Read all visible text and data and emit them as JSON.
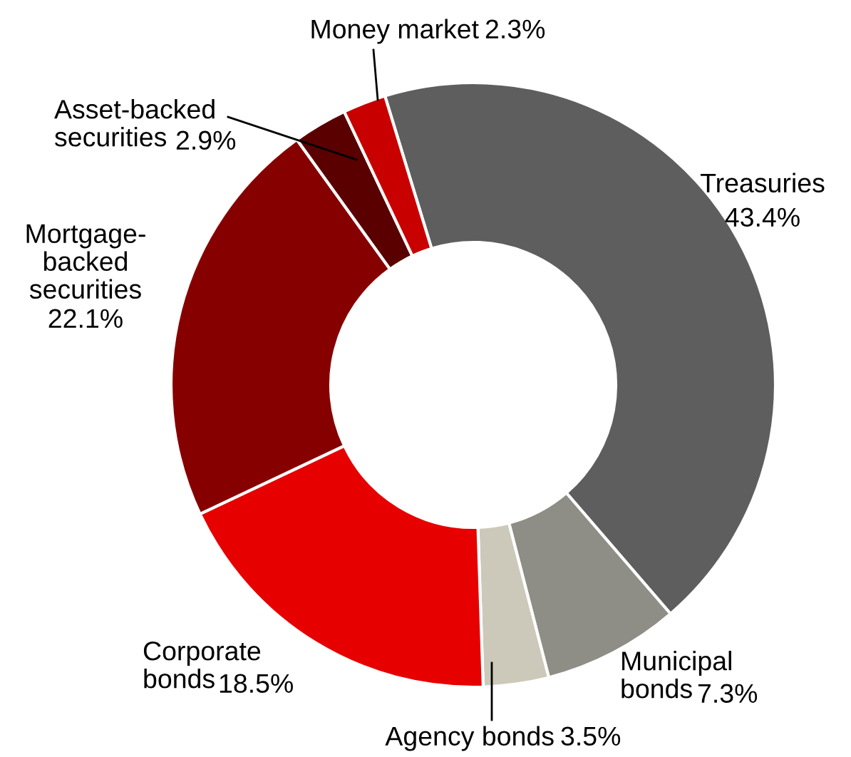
{
  "chart_data": {
    "type": "donut",
    "categories": [
      "Treasuries",
      "Municipal\nbonds",
      "Agency bonds",
      "Corporate\nbonds",
      "Mortgage-\nbacked\nsecurities",
      "Asset-backed\nsecurities",
      "Money market"
    ],
    "values": [
      43.4,
      7.3,
      3.5,
      18.5,
      22.1,
      2.9,
      2.3
    ],
    "value_labels": [
      "43.4%",
      "7.3%",
      "3.5%",
      "18.5%",
      "22.1%",
      "2.9%",
      "2.3%"
    ],
    "colors": [
      "#5d5e5d",
      "#8e8d86",
      "#cdc9ba",
      "#e60000",
      "#870000",
      "#5a0000",
      "#c80000"
    ]
  }
}
